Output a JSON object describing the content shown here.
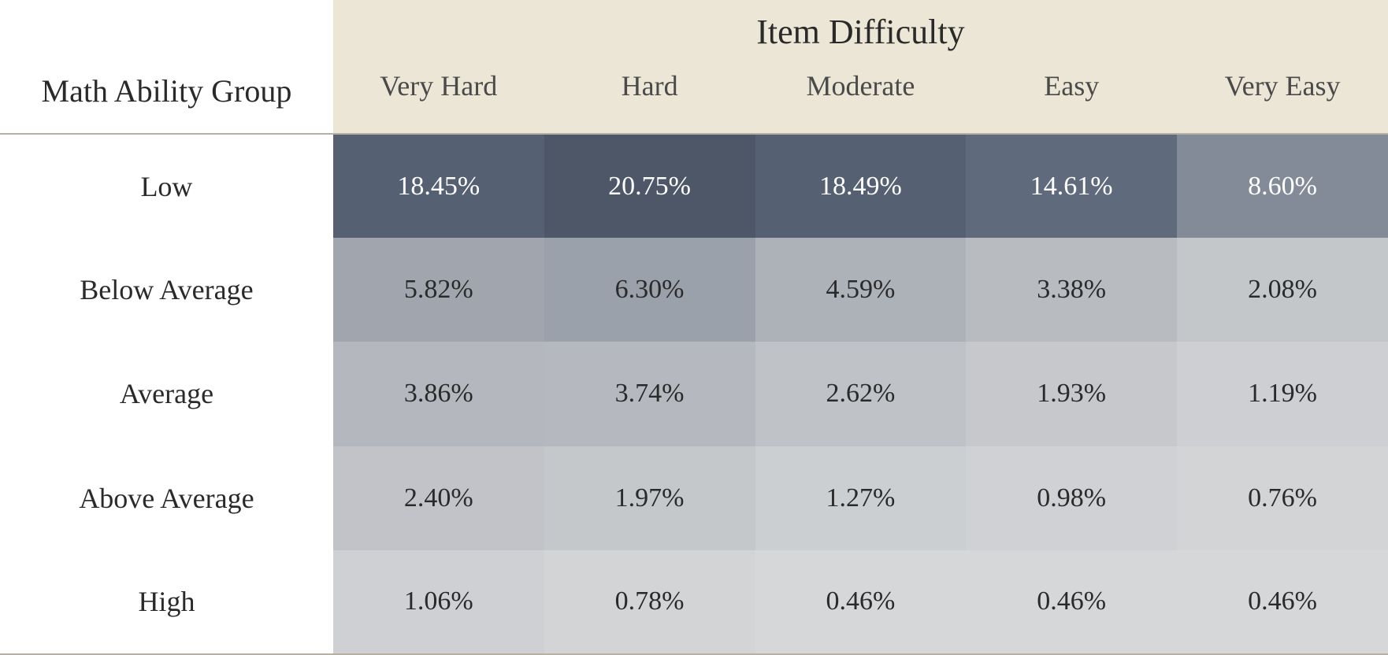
{
  "table": {
    "type": "heatmap-table",
    "super_header": "Item Difficulty",
    "row_header_title": "Math Ability Group",
    "columns": [
      "Very Hard",
      "Hard",
      "Moderate",
      "Easy",
      "Very Easy"
    ],
    "rows": [
      {
        "label": "Low",
        "cells": [
          {
            "value": "18.45%",
            "bg": "#556073",
            "fg": "#ffffff"
          },
          {
            "value": "20.75%",
            "bg": "#4d5768",
            "fg": "#ffffff"
          },
          {
            "value": "18.49%",
            "bg": "#556073",
            "fg": "#ffffff"
          },
          {
            "value": "14.61%",
            "bg": "#5f6a7d",
            "fg": "#ffffff"
          },
          {
            "value": "8.60%",
            "bg": "#838b98",
            "fg": "#ffffff"
          }
        ]
      },
      {
        "label": "Below Average",
        "cells": [
          {
            "value": "5.82%",
            "bg": "#a1a6ae",
            "fg": "#2a2a2a"
          },
          {
            "value": "6.30%",
            "bg": "#9ba1aa",
            "fg": "#2a2a2a"
          },
          {
            "value": "4.59%",
            "bg": "#adb1b8",
            "fg": "#2a2a2a"
          },
          {
            "value": "3.38%",
            "bg": "#b8bbc0",
            "fg": "#2a2a2a"
          },
          {
            "value": "2.08%",
            "bg": "#c4c7ca",
            "fg": "#2a2a2a"
          }
        ]
      },
      {
        "label": "Average",
        "cells": [
          {
            "value": "3.86%",
            "bg": "#b4b7bd",
            "fg": "#2a2a2a"
          },
          {
            "value": "3.74%",
            "bg": "#b5b8be",
            "fg": "#2a2a2a"
          },
          {
            "value": "2.62%",
            "bg": "#bfc2c6",
            "fg": "#2a2a2a"
          },
          {
            "value": "1.93%",
            "bg": "#c6c8cc",
            "fg": "#2a2a2a"
          },
          {
            "value": "1.19%",
            "bg": "#cdcfd2",
            "fg": "#2a2a2a"
          }
        ]
      },
      {
        "label": "Above Average",
        "cells": [
          {
            "value": "2.40%",
            "bg": "#c1c3c8",
            "fg": "#2a2a2a"
          },
          {
            "value": "1.97%",
            "bg": "#c5c8cb",
            "fg": "#2a2a2a"
          },
          {
            "value": "1.27%",
            "bg": "#cccfd2",
            "fg": "#2a2a2a"
          },
          {
            "value": "0.98%",
            "bg": "#cfd1d4",
            "fg": "#2a2a2a"
          },
          {
            "value": "0.76%",
            "bg": "#d2d4d6",
            "fg": "#2a2a2a"
          }
        ]
      },
      {
        "label": "High",
        "cells": [
          {
            "value": "1.06%",
            "bg": "#ced0d3",
            "fg": "#2a2a2a"
          },
          {
            "value": "0.78%",
            "bg": "#d2d4d6",
            "fg": "#2a2a2a"
          },
          {
            "value": "0.46%",
            "bg": "#d6d7d9",
            "fg": "#2a2a2a"
          },
          {
            "value": "0.46%",
            "bg": "#d6d7d9",
            "fg": "#2a2a2a"
          },
          {
            "value": "0.46%",
            "bg": "#d6d7d9",
            "fg": "#2a2a2a"
          }
        ]
      }
    ],
    "styling": {
      "header_bg": "#ece6d6",
      "row_header_bg": "#ffffff",
      "border_color": "#b8b0a4",
      "font_family": "Georgia, serif",
      "super_header_fontsize": 44,
      "col_header_fontsize": 36,
      "row_header_fontsize": 36,
      "cell_fontsize": 34,
      "text_color_dark": "#2a2a2a",
      "text_color_light": "#ffffff"
    }
  }
}
